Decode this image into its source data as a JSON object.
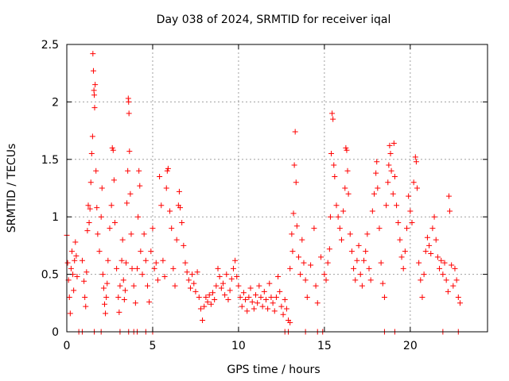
{
  "chart_data": {
    "type": "scatter",
    "title": "Day 038 of 2024, SRMTID for receiver iqal",
    "xlabel": "GPS time / hours",
    "ylabel": "SRMTID / TECUs",
    "xlim": [
      0,
      24.5
    ],
    "ylim": [
      0,
      2.5
    ],
    "xticks": [
      0,
      5,
      10,
      15,
      20
    ],
    "xtick_labels": [
      "0",
      "5",
      "10",
      "15",
      "20"
    ],
    "yticks": [
      0,
      0.5,
      1,
      1.5,
      2,
      2.5
    ],
    "ytick_labels": [
      "0",
      "0.5",
      "1",
      "1.5",
      "2",
      "2.5"
    ],
    "grid": true,
    "marker": "+",
    "series": [
      {
        "name": "SRMTID",
        "color": "#ff0000",
        "points": [
          [
            0.0,
            0.84
          ],
          [
            0.05,
            0.6
          ],
          [
            0.1,
            0.45
          ],
          [
            0.15,
            0.3
          ],
          [
            0.2,
            0.16
          ],
          [
            0.25,
            0.55
          ],
          [
            0.3,
            0.7
          ],
          [
            0.35,
            0.5
          ],
          [
            0.4,
            0.36
          ],
          [
            0.45,
            0.62
          ],
          [
            0.5,
            0.78
          ],
          [
            0.55,
            0.66
          ],
          [
            0.6,
            0.48
          ],
          [
            0.9,
            0.62
          ],
          [
            1.0,
            0.44
          ],
          [
            1.05,
            0.3
          ],
          [
            1.1,
            0.22
          ],
          [
            1.15,
            0.52
          ],
          [
            1.2,
            0.88
          ],
          [
            1.25,
            1.1
          ],
          [
            1.3,
            0.95
          ],
          [
            1.35,
            1.07
          ],
          [
            1.4,
            1.3
          ],
          [
            1.45,
            1.55
          ],
          [
            1.5,
            1.7
          ],
          [
            1.52,
            2.42
          ],
          [
            1.55,
            2.27
          ],
          [
            1.58,
            2.1
          ],
          [
            1.6,
            2.06
          ],
          [
            1.62,
            1.95
          ],
          [
            1.65,
            2.15
          ],
          [
            1.7,
            1.4
          ],
          [
            1.75,
            1.08
          ],
          [
            1.8,
            0.85
          ],
          [
            1.9,
            0.7
          ],
          [
            2.0,
            1.0
          ],
          [
            2.05,
            1.25
          ],
          [
            2.1,
            0.5
          ],
          [
            2.15,
            0.38
          ],
          [
            2.2,
            0.24
          ],
          [
            2.25,
            0.16
          ],
          [
            2.3,
            0.3
          ],
          [
            2.35,
            0.42
          ],
          [
            2.4,
            0.62
          ],
          [
            2.5,
            0.9
          ],
          [
            2.6,
            1.1
          ],
          [
            2.65,
            1.6
          ],
          [
            2.7,
            1.58
          ],
          [
            2.75,
            1.32
          ],
          [
            2.8,
            0.95
          ],
          [
            2.9,
            0.55
          ],
          [
            3.0,
            0.3
          ],
          [
            3.05,
            0.17
          ],
          [
            3.1,
            0.4
          ],
          [
            3.2,
            0.62
          ],
          [
            3.25,
            0.8
          ],
          [
            3.3,
            0.45
          ],
          [
            3.35,
            0.28
          ],
          [
            3.4,
            0.36
          ],
          [
            3.45,
            0.6
          ],
          [
            3.5,
            1.12
          ],
          [
            3.55,
            1.4
          ],
          [
            3.58,
            2.03
          ],
          [
            3.6,
            2.0
          ],
          [
            3.62,
            1.9
          ],
          [
            3.65,
            1.57
          ],
          [
            3.7,
            1.2
          ],
          [
            3.75,
            0.85
          ],
          [
            3.8,
            0.55
          ],
          [
            3.9,
            0.4
          ],
          [
            4.0,
            0.25
          ],
          [
            4.1,
            0.55
          ],
          [
            4.15,
            1.0
          ],
          [
            4.2,
            1.4
          ],
          [
            4.25,
            1.27
          ],
          [
            4.3,
            0.7
          ],
          [
            4.4,
            0.5
          ],
          [
            4.5,
            0.85
          ],
          [
            4.6,
            0.62
          ],
          [
            4.7,
            0.4
          ],
          [
            4.8,
            0.26
          ],
          [
            4.9,
            0.7
          ],
          [
            5.0,
            0.9
          ],
          [
            5.1,
            0.55
          ],
          [
            5.2,
            0.6
          ],
          [
            5.3,
            0.45
          ],
          [
            5.4,
            1.35
          ],
          [
            5.5,
            1.1
          ],
          [
            5.6,
            0.62
          ],
          [
            5.7,
            0.48
          ],
          [
            5.8,
            1.25
          ],
          [
            5.85,
            1.4
          ],
          [
            5.9,
            1.42
          ],
          [
            6.0,
            1.05
          ],
          [
            6.1,
            0.9
          ],
          [
            6.2,
            0.55
          ],
          [
            6.3,
            0.4
          ],
          [
            6.4,
            0.8
          ],
          [
            6.5,
            1.1
          ],
          [
            6.55,
            1.22
          ],
          [
            6.6,
            1.08
          ],
          [
            6.7,
            0.95
          ],
          [
            6.8,
            0.75
          ],
          [
            6.9,
            0.6
          ],
          [
            7.0,
            0.52
          ],
          [
            7.1,
            0.45
          ],
          [
            7.2,
            0.38
          ],
          [
            7.3,
            0.5
          ],
          [
            7.4,
            0.42
          ],
          [
            7.5,
            0.35
          ],
          [
            7.6,
            0.52
          ],
          [
            7.7,
            0.3
          ],
          [
            7.8,
            0.2
          ],
          [
            7.9,
            0.1
          ],
          [
            8.0,
            0.22
          ],
          [
            8.1,
            0.3
          ],
          [
            8.2,
            0.26
          ],
          [
            8.3,
            0.32
          ],
          [
            8.4,
            0.24
          ],
          [
            8.5,
            0.34
          ],
          [
            8.6,
            0.28
          ],
          [
            8.7,
            0.4
          ],
          [
            8.8,
            0.55
          ],
          [
            8.9,
            0.48
          ],
          [
            9.0,
            0.38
          ],
          [
            9.1,
            0.42
          ],
          [
            9.2,
            0.32
          ],
          [
            9.3,
            0.5
          ],
          [
            9.4,
            0.28
          ],
          [
            9.5,
            0.36
          ],
          [
            9.6,
            0.46
          ],
          [
            9.7,
            0.55
          ],
          [
            9.8,
            0.62
          ],
          [
            9.9,
            0.48
          ],
          [
            10.0,
            0.4
          ],
          [
            10.1,
            0.3
          ],
          [
            10.2,
            0.22
          ],
          [
            10.3,
            0.34
          ],
          [
            10.4,
            0.28
          ],
          [
            10.5,
            0.18
          ],
          [
            10.6,
            0.3
          ],
          [
            10.7,
            0.38
          ],
          [
            10.8,
            0.26
          ],
          [
            10.9,
            0.2
          ],
          [
            11.0,
            0.32
          ],
          [
            11.1,
            0.25
          ],
          [
            11.2,
            0.4
          ],
          [
            11.3,
            0.3
          ],
          [
            11.4,
            0.22
          ],
          [
            11.5,
            0.35
          ],
          [
            11.6,
            0.28
          ],
          [
            11.7,
            0.2
          ],
          [
            11.8,
            0.42
          ],
          [
            11.9,
            0.3
          ],
          [
            12.0,
            0.25
          ],
          [
            12.1,
            0.18
          ],
          [
            12.2,
            0.3
          ],
          [
            12.3,
            0.48
          ],
          [
            12.4,
            0.35
          ],
          [
            12.5,
            0.22
          ],
          [
            12.6,
            0.15
          ],
          [
            12.7,
            0.28
          ],
          [
            12.8,
            0.2
          ],
          [
            12.9,
            0.1
          ],
          [
            13.0,
            0.08
          ],
          [
            13.0,
            0.55
          ],
          [
            13.1,
            0.85
          ],
          [
            13.15,
            0.7
          ],
          [
            13.2,
            1.03
          ],
          [
            13.25,
            1.45
          ],
          [
            13.3,
            1.74
          ],
          [
            13.35,
            1.3
          ],
          [
            13.4,
            0.92
          ],
          [
            13.5,
            0.65
          ],
          [
            13.6,
            0.5
          ],
          [
            13.7,
            0.8
          ],
          [
            13.8,
            0.6
          ],
          [
            13.9,
            0.45
          ],
          [
            14.0,
            0.3
          ],
          [
            14.2,
            0.58
          ],
          [
            14.4,
            0.9
          ],
          [
            14.5,
            0.4
          ],
          [
            14.6,
            0.25
          ],
          [
            14.8,
            0.65
          ],
          [
            15.0,
            0.5
          ],
          [
            15.1,
            0.45
          ],
          [
            15.2,
            0.6
          ],
          [
            15.3,
            0.72
          ],
          [
            15.35,
            1.0
          ],
          [
            15.4,
            1.55
          ],
          [
            15.45,
            1.9
          ],
          [
            15.5,
            1.85
          ],
          [
            15.55,
            1.45
          ],
          [
            15.6,
            1.35
          ],
          [
            15.7,
            1.1
          ],
          [
            15.8,
            1.0
          ],
          [
            15.9,
            0.9
          ],
          [
            16.0,
            0.8
          ],
          [
            16.1,
            1.05
          ],
          [
            16.2,
            1.25
          ],
          [
            16.25,
            1.6
          ],
          [
            16.3,
            1.58
          ],
          [
            16.35,
            1.4
          ],
          [
            16.4,
            1.2
          ],
          [
            16.5,
            0.85
          ],
          [
            16.6,
            0.7
          ],
          [
            16.7,
            0.55
          ],
          [
            16.8,
            0.45
          ],
          [
            16.9,
            0.62
          ],
          [
            17.0,
            0.75
          ],
          [
            17.1,
            0.5
          ],
          [
            17.2,
            0.4
          ],
          [
            17.3,
            0.62
          ],
          [
            17.4,
            0.7
          ],
          [
            17.5,
            0.85
          ],
          [
            17.6,
            0.55
          ],
          [
            17.7,
            0.45
          ],
          [
            17.8,
            1.05
          ],
          [
            17.9,
            1.2
          ],
          [
            18.0,
            1.38
          ],
          [
            18.05,
            1.48
          ],
          [
            18.1,
            1.25
          ],
          [
            18.2,
            0.9
          ],
          [
            18.3,
            0.6
          ],
          [
            18.4,
            0.42
          ],
          [
            18.5,
            0.3
          ],
          [
            18.6,
            1.1
          ],
          [
            18.7,
            1.3
          ],
          [
            18.75,
            1.45
          ],
          [
            18.8,
            1.62
          ],
          [
            18.85,
            1.55
          ],
          [
            18.9,
            1.4
          ],
          [
            19.0,
            1.2
          ],
          [
            19.05,
            1.64
          ],
          [
            19.1,
            1.35
          ],
          [
            19.2,
            1.1
          ],
          [
            19.3,
            0.95
          ],
          [
            19.4,
            0.8
          ],
          [
            19.5,
            0.65
          ],
          [
            19.6,
            0.55
          ],
          [
            19.7,
            0.7
          ],
          [
            19.8,
            0.9
          ],
          [
            19.9,
            1.18
          ],
          [
            20.0,
            1.05
          ],
          [
            20.1,
            0.95
          ],
          [
            20.2,
            1.3
          ],
          [
            20.3,
            1.52
          ],
          [
            20.35,
            1.48
          ],
          [
            20.4,
            1.25
          ],
          [
            20.5,
            0.6
          ],
          [
            20.6,
            0.45
          ],
          [
            20.7,
            0.3
          ],
          [
            20.8,
            0.5
          ],
          [
            20.9,
            0.7
          ],
          [
            21.0,
            0.82
          ],
          [
            21.1,
            0.75
          ],
          [
            21.2,
            0.68
          ],
          [
            21.3,
            0.9
          ],
          [
            21.4,
            1.0
          ],
          [
            21.5,
            0.8
          ],
          [
            21.6,
            0.65
          ],
          [
            21.7,
            0.55
          ],
          [
            21.8,
            0.62
          ],
          [
            21.9,
            0.5
          ],
          [
            22.0,
            0.6
          ],
          [
            22.1,
            0.45
          ],
          [
            22.2,
            0.35
          ],
          [
            22.25,
            1.18
          ],
          [
            22.3,
            1.05
          ],
          [
            22.4,
            0.58
          ],
          [
            22.5,
            0.4
          ],
          [
            22.6,
            0.55
          ],
          [
            22.7,
            0.45
          ],
          [
            22.8,
            0.3
          ],
          [
            22.9,
            0.25
          ],
          [
            0.7,
            0.0
          ],
          [
            0.9,
            0.0
          ],
          [
            1.6,
            0.0
          ],
          [
            2.0,
            0.0
          ],
          [
            3.1,
            0.0
          ],
          [
            3.6,
            0.0
          ],
          [
            3.9,
            0.0
          ],
          [
            4.1,
            0.0
          ],
          [
            4.6,
            0.0
          ],
          [
            5.0,
            0.0
          ],
          [
            12.7,
            0.0
          ],
          [
            12.9,
            0.0
          ],
          [
            13.9,
            0.0
          ],
          [
            14.6,
            0.0
          ],
          [
            14.9,
            0.0
          ],
          [
            18.5,
            0.0
          ],
          [
            19.1,
            0.0
          ],
          [
            21.9,
            0.0
          ],
          [
            22.8,
            0.0
          ]
        ]
      }
    ]
  }
}
